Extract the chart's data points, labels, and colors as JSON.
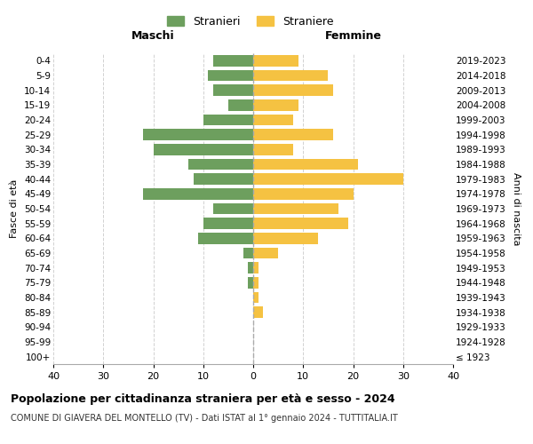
{
  "age_groups": [
    "100+",
    "95-99",
    "90-94",
    "85-89",
    "80-84",
    "75-79",
    "70-74",
    "65-69",
    "60-64",
    "55-59",
    "50-54",
    "45-49",
    "40-44",
    "35-39",
    "30-34",
    "25-29",
    "20-24",
    "15-19",
    "10-14",
    "5-9",
    "0-4"
  ],
  "birth_years": [
    "≤ 1923",
    "1924-1928",
    "1929-1933",
    "1934-1938",
    "1939-1943",
    "1944-1948",
    "1949-1953",
    "1954-1958",
    "1959-1963",
    "1964-1968",
    "1969-1973",
    "1974-1978",
    "1979-1983",
    "1984-1988",
    "1989-1993",
    "1994-1998",
    "1999-2003",
    "2004-2008",
    "2009-2013",
    "2014-2018",
    "2019-2023"
  ],
  "maschi": [
    0,
    0,
    0,
    0,
    0,
    1,
    1,
    2,
    11,
    10,
    8,
    22,
    12,
    13,
    20,
    22,
    10,
    5,
    8,
    9,
    8
  ],
  "femmine": [
    0,
    0,
    0,
    2,
    1,
    1,
    1,
    5,
    13,
    19,
    17,
    20,
    30,
    21,
    8,
    16,
    8,
    9,
    16,
    15,
    9
  ],
  "color_maschi": "#6d9f5e",
  "color_femmine": "#f5c242",
  "background_color": "#ffffff",
  "grid_color": "#cccccc",
  "title": "Popolazione per cittadinanza straniera per età e sesso - 2024",
  "subtitle": "COMUNE DI GIAVERA DEL MONTELLO (TV) - Dati ISTAT al 1° gennaio 2024 - TUTTITALIA.IT",
  "ylabel_left": "Fasce di età",
  "ylabel_right": "Anni di nascita",
  "xlabel_maschi": "Maschi",
  "xlabel_femmine": "Femmine",
  "legend_maschi": "Stranieri",
  "legend_femmine": "Straniere",
  "xlim": 40
}
